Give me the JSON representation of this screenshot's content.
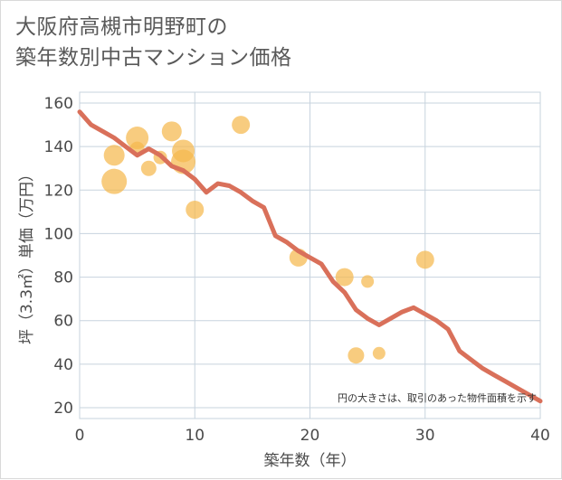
{
  "title_line1": "大阪府高槻市明野町の",
  "title_line2": "築年数別中古マンション価格",
  "chart_data": {
    "type": "scatter",
    "xlabel": "築年数（年）",
    "ylabel": "坪（3.3㎡）単価（万円）",
    "xlim": [
      0,
      40
    ],
    "ylim": [
      15,
      165
    ],
    "xticks": [
      0,
      10,
      20,
      30,
      40
    ],
    "yticks": [
      20,
      40,
      60,
      80,
      100,
      120,
      140,
      160
    ],
    "grid": true,
    "note": "円の大きさは、取引のあった物件面積を示す",
    "colors": {
      "bubble": "#f5b94d",
      "line": "#d9705a",
      "grid": "#c7d3de",
      "border": "#c7d3de"
    },
    "bubbles": [
      {
        "x": 3,
        "y": 124,
        "size": 1.0
      },
      {
        "x": 3,
        "y": 136,
        "size": 0.75
      },
      {
        "x": 5,
        "y": 144,
        "size": 0.85
      },
      {
        "x": 5,
        "y": 139,
        "size": 0.4
      },
      {
        "x": 6,
        "y": 130,
        "size": 0.45
      },
      {
        "x": 7,
        "y": 135,
        "size": 0.35
      },
      {
        "x": 8,
        "y": 147,
        "size": 0.7
      },
      {
        "x": 9,
        "y": 138,
        "size": 0.85
      },
      {
        "x": 9,
        "y": 133,
        "size": 0.95
      },
      {
        "x": 10,
        "y": 111,
        "size": 0.6
      },
      {
        "x": 14,
        "y": 150,
        "size": 0.6
      },
      {
        "x": 19,
        "y": 89,
        "size": 0.6
      },
      {
        "x": 23,
        "y": 80,
        "size": 0.6
      },
      {
        "x": 25,
        "y": 78,
        "size": 0.3
      },
      {
        "x": 24,
        "y": 44,
        "size": 0.5
      },
      {
        "x": 26,
        "y": 45,
        "size": 0.3
      },
      {
        "x": 30,
        "y": 88,
        "size": 0.6
      }
    ],
    "trend": {
      "x": [
        0,
        1,
        2,
        3,
        4,
        5,
        6,
        7,
        8,
        9,
        10,
        11,
        12,
        13,
        14,
        15,
        16,
        17,
        18,
        19,
        20,
        21,
        22,
        23,
        24,
        25,
        26,
        27,
        28,
        29,
        30,
        31,
        32,
        33,
        34,
        35,
        36,
        37,
        38,
        39,
        40
      ],
      "y": [
        156,
        150,
        147,
        144,
        140,
        136,
        139,
        136,
        131,
        129,
        125,
        119,
        123,
        122,
        119,
        115,
        112,
        99,
        96,
        92,
        89,
        86,
        78,
        73,
        65,
        61,
        58,
        61,
        64,
        66,
        63,
        60,
        56,
        46,
        42,
        38,
        35,
        32,
        29,
        26,
        23
      ]
    }
  }
}
